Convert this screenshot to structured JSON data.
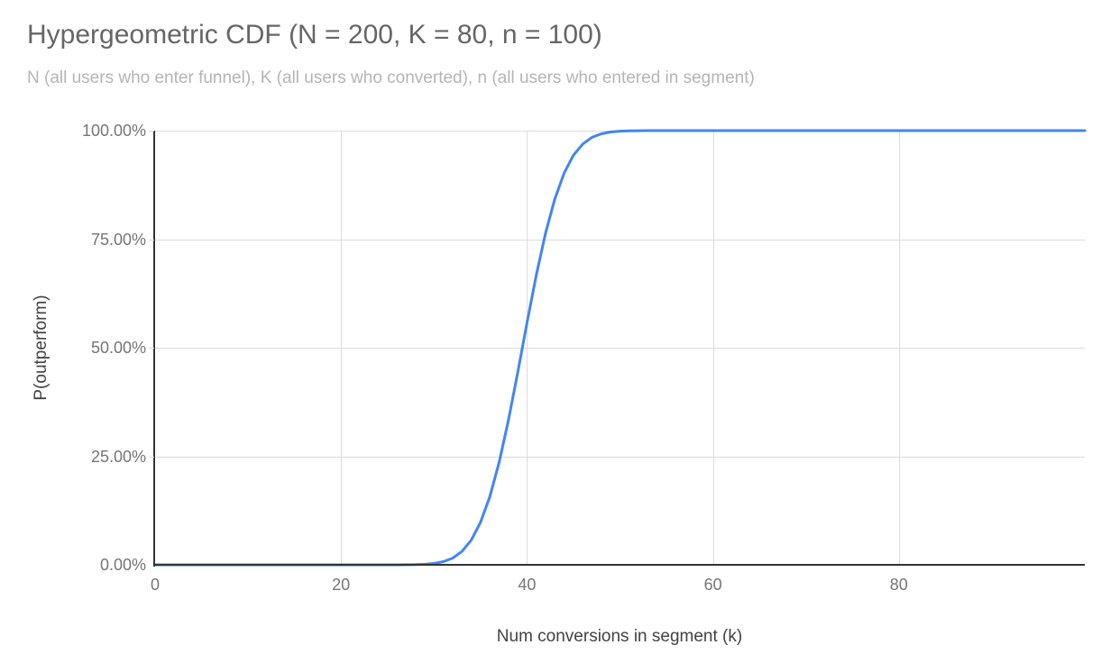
{
  "chart": {
    "title": "Hypergeometric CDF (N = 200, K = 80, n = 100)",
    "subtitle": "N (all users who enter funnel), K (all users who converted), n (all users who entered in segment)",
    "x_axis_title": "Num conversions in segment (k)",
    "y_axis_title": "P(outperform)",
    "colors": {
      "line": "#4285f4",
      "grid": "#dcdcdc",
      "axis": "#333333",
      "title": "#666666",
      "subtitle": "#b5b5b5",
      "tick_label": "#757575",
      "axis_title": "#424242"
    }
  },
  "chart_data": {
    "type": "line",
    "title": "Hypergeometric CDF (N = 200, K = 80, n = 100)",
    "subtitle": "N (all users who enter funnel), K (all users who converted), n (all users who entered in segment)",
    "xlabel": "Num conversions in segment (k)",
    "ylabel": "P(outperform)",
    "xlim": [
      0,
      100
    ],
    "ylim": [
      0,
      1
    ],
    "grid": true,
    "legend": false,
    "x_ticks": [
      {
        "value": 0,
        "label": "0"
      },
      {
        "value": 20,
        "label": "20"
      },
      {
        "value": 40,
        "label": "40"
      },
      {
        "value": 60,
        "label": "60"
      },
      {
        "value": 80,
        "label": "80"
      }
    ],
    "y_ticks": [
      {
        "value": 0,
        "label": "0.00%"
      },
      {
        "value": 0.25,
        "label": "25.00%"
      },
      {
        "value": 0.5,
        "label": "50.00%"
      },
      {
        "value": 0.75,
        "label": "75.00%"
      },
      {
        "value": 1,
        "label": "100.00%"
      }
    ],
    "series": [
      {
        "name": "P(outperform)",
        "x": [
          0,
          1,
          2,
          3,
          4,
          5,
          6,
          7,
          8,
          9,
          10,
          11,
          12,
          13,
          14,
          15,
          16,
          17,
          18,
          19,
          20,
          21,
          22,
          23,
          24,
          25,
          26,
          27,
          28,
          29,
          30,
          31,
          32,
          33,
          34,
          35,
          36,
          37,
          38,
          39,
          40,
          41,
          42,
          43,
          44,
          45,
          46,
          47,
          48,
          49,
          50,
          51,
          52,
          53,
          54,
          55,
          56,
          57,
          58,
          59,
          60,
          61,
          62,
          63,
          64,
          65,
          66,
          67,
          68,
          69,
          70,
          71,
          72,
          73,
          74,
          75,
          76,
          77,
          78,
          79,
          80,
          81,
          82,
          83,
          84,
          85,
          86,
          87,
          88,
          89,
          90,
          91,
          92,
          93,
          94,
          95,
          96,
          97,
          98,
          99,
          100
        ],
        "y": [
          0,
          0,
          0,
          0,
          0,
          0,
          0,
          0,
          0,
          0,
          0,
          0,
          0,
          0,
          0,
          0,
          0,
          0,
          0,
          0,
          0,
          0,
          0,
          0,
          0,
          0,
          0.0001,
          0.0002,
          0.0005,
          0.0013,
          0.0031,
          0.0072,
          0.0154,
          0.0307,
          0.0567,
          0.0977,
          0.157,
          0.2358,
          0.3329,
          0.4428,
          0.5572,
          0.6671,
          0.7642,
          0.843,
          0.9023,
          0.9433,
          0.9693,
          0.9846,
          0.9928,
          0.9969,
          0.9987,
          0.9995,
          0.9998,
          0.9999,
          1,
          1,
          1,
          1,
          1,
          1,
          1,
          1,
          1,
          1,
          1,
          1,
          1,
          1,
          1,
          1,
          1,
          1,
          1,
          1,
          1,
          1,
          1,
          1,
          1,
          1,
          1,
          1,
          1,
          1,
          1,
          1,
          1,
          1,
          1,
          1,
          1,
          1,
          1,
          1,
          1,
          1,
          1,
          1,
          1,
          1,
          1
        ]
      }
    ]
  }
}
